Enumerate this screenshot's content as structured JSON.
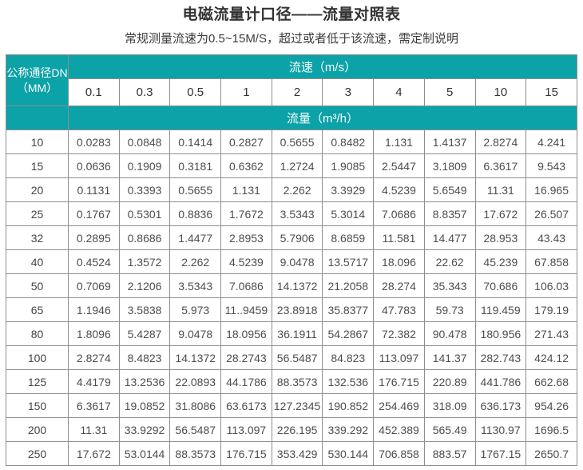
{
  "page": {
    "title": "电磁流量计口径——流量对照表",
    "subtitle": "常规测量流速为0.5~15M/S，超过或者低于该流速，需定制说明"
  },
  "table": {
    "corner_header_line1": "公称通径DN",
    "corner_header_line2": "（MM）",
    "velocity_header": "流速（m/s）",
    "flow_header": "流量（m³/h）",
    "velocities": [
      "0.1",
      "0.3",
      "0.5",
      "1",
      "2",
      "3",
      "4",
      "5",
      "10",
      "15"
    ],
    "rows": [
      {
        "dn": "10",
        "values": [
          "0.0283",
          "0.0848",
          "0.1414",
          "0.2827",
          "0.5655",
          "0.8482",
          "1.131",
          "1.4137",
          "2.8274",
          "4.241"
        ]
      },
      {
        "dn": "15",
        "values": [
          "0.0636",
          "0.1909",
          "0.3181",
          "0.6362",
          "1.2724",
          "1.9085",
          "2.5447",
          "3.1809",
          "6.3617",
          "9.543"
        ]
      },
      {
        "dn": "20",
        "values": [
          "0.1131",
          "0.3393",
          "0.5655",
          "1.131",
          "2.262",
          "3.3929",
          "4.5239",
          "5.6549",
          "11.31",
          "16.965"
        ]
      },
      {
        "dn": "25",
        "values": [
          "0.1767",
          "0.5301",
          "0.8836",
          "1.7672",
          "3.5343",
          "5.3014",
          "7.0686",
          "8.8357",
          "17.672",
          "26.507"
        ]
      },
      {
        "dn": "32",
        "values": [
          "0.2895",
          "0.8686",
          "1.4477",
          "2.8953",
          "5.7906",
          "8.6859",
          "11.581",
          "14.477",
          "28.953",
          "43.43"
        ]
      },
      {
        "dn": "40",
        "values": [
          "0.4524",
          "1.3572",
          "2.262",
          "4.5239",
          "9.0478",
          "13.5717",
          "18.096",
          "22.62",
          "45.239",
          "67.858"
        ]
      },
      {
        "dn": "50",
        "values": [
          "0.7069",
          "2.1206",
          "3.5343",
          "7.0686",
          "14.1372",
          "21.2058",
          "28.274",
          "35.343",
          "70.686",
          "106.03"
        ]
      },
      {
        "dn": "65",
        "values": [
          "1.1946",
          "3.5838",
          "5.973",
          "11..9459",
          "23.8918",
          "35.8377",
          "47.783",
          "59.73",
          "119.459",
          "179.19"
        ]
      },
      {
        "dn": "80",
        "values": [
          "1.8096",
          "5.4287",
          "9.0478",
          "18.0956",
          "36.1911",
          "54.2867",
          "72.382",
          "90.478",
          "180.956",
          "271.43"
        ]
      },
      {
        "dn": "100",
        "values": [
          "2.8274",
          "8.4823",
          "14.1372",
          "28.2743",
          "56.5487",
          "84.823",
          "113.097",
          "141.37",
          "282.743",
          "424.12"
        ]
      },
      {
        "dn": "125",
        "values": [
          "4.4179",
          "13.2536",
          "22.0893",
          "44.1786",
          "88.3573",
          "132.536",
          "176.715",
          "220.89",
          "441.786",
          "662.68"
        ]
      },
      {
        "dn": "150",
        "values": [
          "6.3617",
          "19.0852",
          "31.8086",
          "63.6173",
          "127.2345",
          "190.852",
          "254.469",
          "318.09",
          "636.173",
          "954.26"
        ]
      },
      {
        "dn": "200",
        "values": [
          "11.31",
          "33.9292",
          "56.5487",
          "113.097",
          "226.195",
          "339.292",
          "452.389",
          "565.49",
          "1130.97",
          "1696.5"
        ]
      },
      {
        "dn": "250",
        "values": [
          "17.672",
          "53.0144",
          "88.3573",
          "176.715",
          "353.429",
          "530.144",
          "706.858",
          "883.57",
          "1767.15",
          "2650.7"
        ]
      }
    ]
  },
  "colors": {
    "header_teal": "#0ba2a8",
    "cell_border": "#8e8e8e",
    "title_text": "#333333",
    "cell_text": "#4d4d4d"
  }
}
